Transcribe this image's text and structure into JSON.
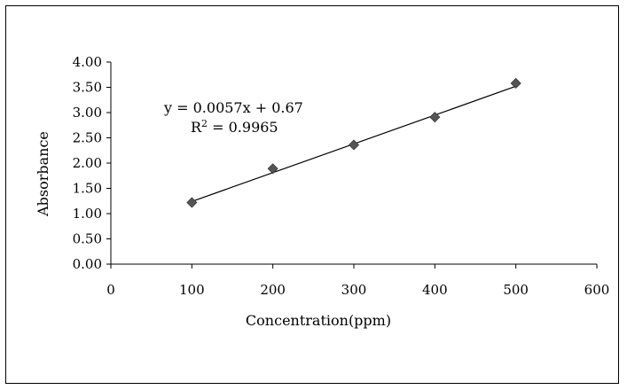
{
  "chart_data": {
    "type": "scatter",
    "title": "",
    "xlabel": "Concentration(ppm)",
    "ylabel": "Absorbance",
    "xlim": [
      0,
      600
    ],
    "ylim": [
      0,
      4
    ],
    "xticks": [
      0,
      100,
      200,
      300,
      400,
      500,
      600
    ],
    "yticks": [
      0,
      0.5,
      1.0,
      1.5,
      2.0,
      2.5,
      3.0,
      3.5,
      4.0
    ],
    "xtick_labels": [
      "0",
      "100",
      "200",
      "300",
      "400",
      "500",
      "600"
    ],
    "ytick_labels": [
      "0.00",
      "0.50",
      "1.00",
      "1.50",
      "2.00",
      "2.50",
      "3.00",
      "3.50",
      "4.00"
    ],
    "grid": false,
    "marker": "diamond",
    "marker_color": "#555555",
    "series": [
      {
        "x": [
          100,
          200,
          300,
          400,
          500
        ],
        "y": [
          1.22,
          1.89,
          2.36,
          2.91,
          3.58
        ]
      }
    ],
    "trendline": {
      "type": "linear",
      "slope": 0.0057,
      "intercept": 0.67,
      "x_range": [
        100,
        500
      ],
      "equation": "y = 0.0057x + 0.67",
      "r2_prefix": "R",
      "r2_sup": "2",
      "r2_value": " = 0.9965"
    }
  }
}
